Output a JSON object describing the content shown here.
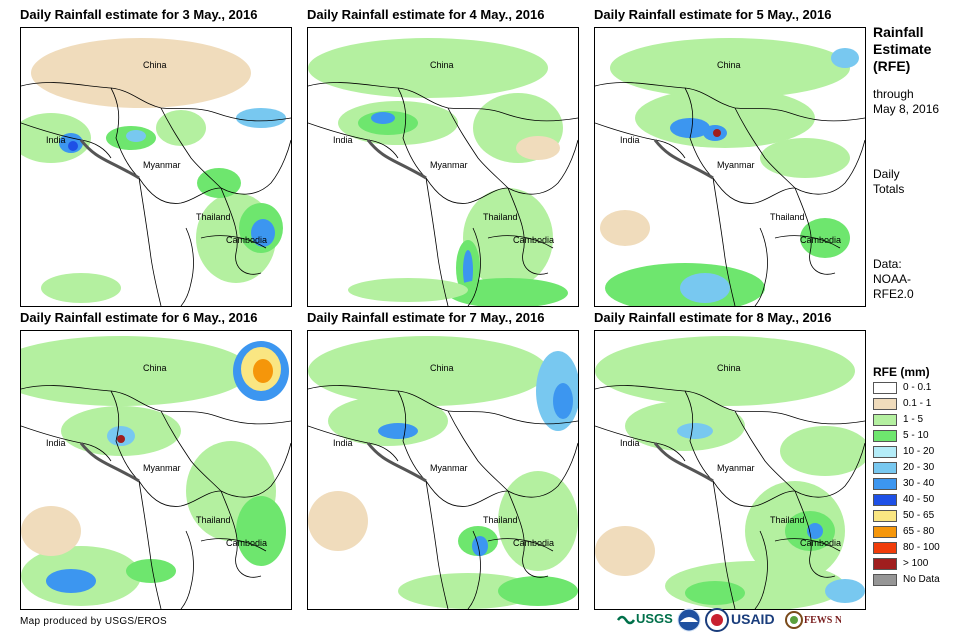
{
  "panels": [
    {
      "title": "Daily Rainfall estimate for 3 May., 2016"
    },
    {
      "title": "Daily Rainfall estimate for 4 May., 2016"
    },
    {
      "title": "Daily Rainfall estimate for 5 May., 2016"
    },
    {
      "title": "Daily Rainfall estimate for 6 May., 2016"
    },
    {
      "title": "Daily Rainfall estimate for 7 May., 2016"
    },
    {
      "title": "Daily Rainfall estimate for 8 May., 2016"
    }
  ],
  "map_labels": {
    "china": "China",
    "india": "India",
    "myanmar": "Myanmar",
    "thailand": "Thailand",
    "cambodia": "Cambodia"
  },
  "side": {
    "title_line1": "Rainfall",
    "title_line2": "Estimate",
    "title_line3": "(RFE)",
    "through": "through",
    "date": "May 8, 2016",
    "daily": "Daily",
    "totals": "Totals",
    "data_label": "Data:",
    "data_src1": "NOAA-",
    "data_src2": "RFE2.0"
  },
  "legend": {
    "title": "RFE (mm)",
    "items": [
      {
        "label": "0 - 0.1",
        "color": "#ffffff"
      },
      {
        "label": "0.1 - 1",
        "color": "#f0dcbc"
      },
      {
        "label": "1 - 5",
        "color": "#b4f0a0"
      },
      {
        "label": "5 - 10",
        "color": "#6ee66e"
      },
      {
        "label": "10 - 20",
        "color": "#b4ecf8"
      },
      {
        "label": "20 - 30",
        "color": "#78c8f0"
      },
      {
        "label": "30 - 40",
        "color": "#3c96f0"
      },
      {
        "label": "40 - 50",
        "color": "#1e50e6"
      },
      {
        "label": "50 - 65",
        "color": "#fae682"
      },
      {
        "label": "65 - 80",
        "color": "#f5960a"
      },
      {
        "label": "80 - 100",
        "color": "#f03c0a"
      },
      {
        "label": "> 100",
        "color": "#a01e1e"
      },
      {
        "label": "No Data",
        "color": "#969696"
      }
    ]
  },
  "footer": "Map produced by USGS/EROS",
  "logos": {
    "usgs": "USGS",
    "usaid": "USAID",
    "fewsnet": "FEWS NET"
  }
}
